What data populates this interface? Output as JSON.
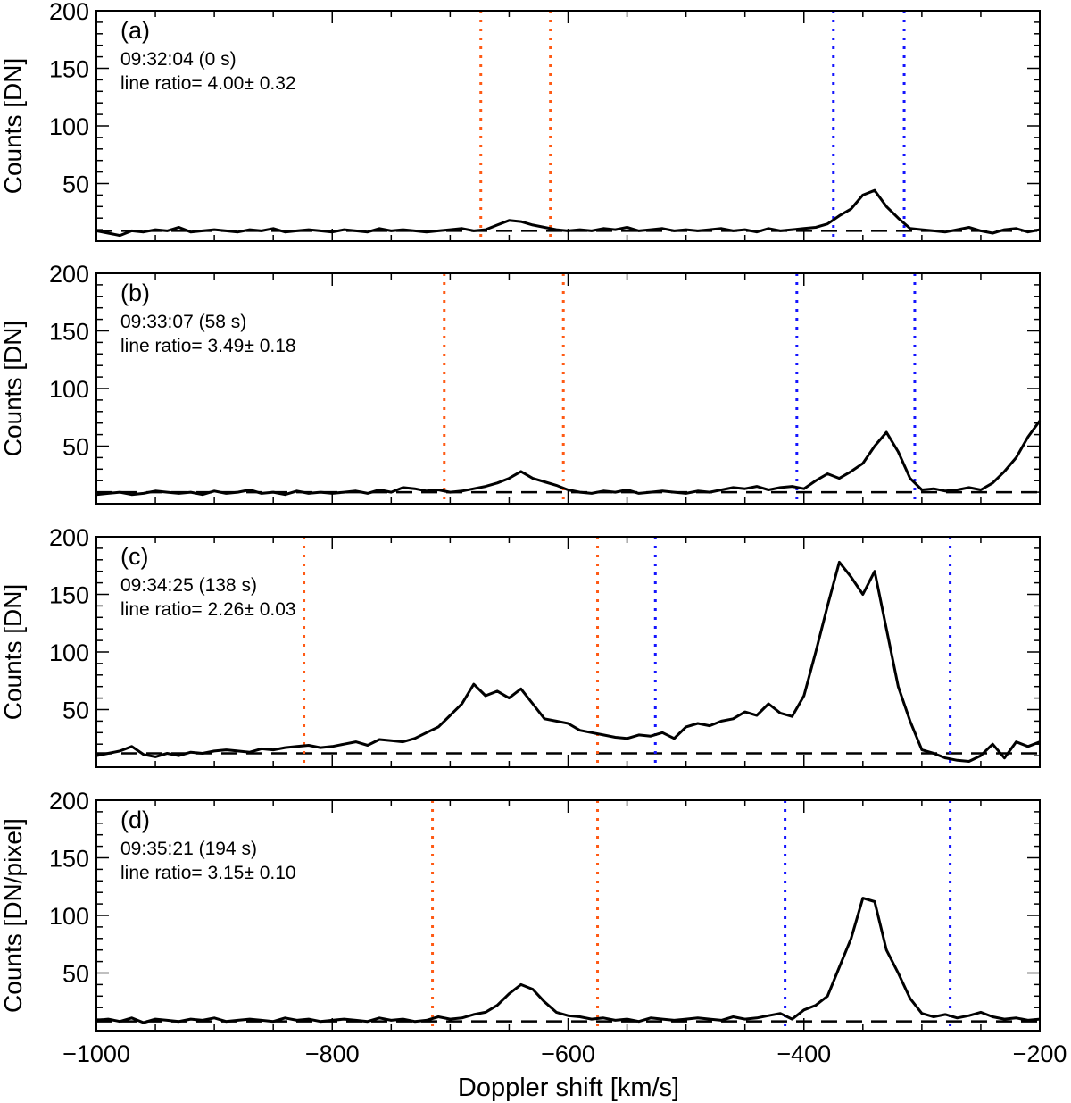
{
  "chart_data": [
    {
      "type": "line",
      "panel_label": "(a)",
      "time": "09:32:04 (0 s)",
      "ratio": "line ratio= 4.00± 0.32",
      "ylabel": "Counts [DN]",
      "xlim": [
        -1000,
        -200
      ],
      "ylim": [
        0,
        200
      ],
      "baseline": 9,
      "orange_lines": [
        -674,
        -615
      ],
      "blue_lines": [
        -375,
        -315
      ],
      "x_start": -1000,
      "x_step": 10,
      "values": [
        9,
        7,
        5,
        9,
        8,
        10,
        9,
        12,
        8,
        9,
        10,
        9,
        8,
        10,
        9,
        11,
        8,
        9,
        10,
        9,
        8,
        10,
        9,
        8,
        11,
        9,
        10,
        9,
        8,
        9,
        10,
        11,
        9,
        10,
        14,
        18,
        17,
        14,
        12,
        10,
        9,
        10,
        9,
        11,
        10,
        12,
        9,
        10,
        11,
        9,
        10,
        9,
        10,
        11,
        9,
        10,
        8,
        11,
        9,
        10,
        11,
        12,
        15,
        22,
        28,
        40,
        44,
        30,
        20,
        11,
        10,
        9,
        8,
        10,
        12,
        9,
        7,
        10,
        11,
        8,
        10
      ]
    },
    {
      "type": "line",
      "panel_label": "(b)",
      "time": "09:33:07 (58 s)",
      "ratio": "line ratio= 3.49± 0.18",
      "ylabel": "Counts [DN]",
      "xlim": [
        -1000,
        -200
      ],
      "ylim": [
        0,
        200
      ],
      "baseline": 10,
      "orange_lines": [
        -705,
        -604
      ],
      "blue_lines": [
        -406,
        -306
      ],
      "x_start": -1000,
      "x_step": 10,
      "values": [
        8,
        9,
        10,
        8,
        9,
        11,
        10,
        9,
        10,
        8,
        11,
        9,
        10,
        12,
        9,
        10,
        8,
        11,
        9,
        10,
        9,
        10,
        11,
        9,
        12,
        10,
        14,
        13,
        11,
        12,
        10,
        11,
        13,
        15,
        18,
        22,
        28,
        22,
        19,
        16,
        12,
        10,
        9,
        11,
        10,
        12,
        9,
        10,
        11,
        10,
        9,
        11,
        10,
        12,
        14,
        13,
        15,
        12,
        14,
        15,
        13,
        20,
        26,
        22,
        28,
        35,
        50,
        62,
        45,
        22,
        12,
        13,
        11,
        12,
        14,
        12,
        18,
        28,
        40,
        58,
        72
      ]
    },
    {
      "type": "line",
      "panel_label": "(c)",
      "time": "09:34:25 (138 s)",
      "ratio": "line ratio= 2.26± 0.03",
      "ylabel": "Counts [DN]",
      "xlim": [
        -1000,
        -200
      ],
      "ylim": [
        0,
        200
      ],
      "baseline": 12,
      "orange_lines": [
        -824,
        -575
      ],
      "blue_lines": [
        -526,
        -276
      ],
      "x_start": -1000,
      "x_step": 10,
      "values": [
        10,
        12,
        14,
        18,
        11,
        9,
        12,
        10,
        13,
        12,
        14,
        15,
        14,
        13,
        16,
        15,
        17,
        18,
        19,
        17,
        18,
        20,
        22,
        19,
        24,
        23,
        22,
        25,
        30,
        35,
        45,
        55,
        72,
        62,
        66,
        60,
        68,
        55,
        42,
        40,
        38,
        32,
        30,
        28,
        26,
        25,
        28,
        27,
        30,
        25,
        35,
        38,
        36,
        40,
        42,
        48,
        45,
        55,
        47,
        44,
        62,
        100,
        140,
        178,
        165,
        150,
        170,
        120,
        70,
        40,
        15,
        12,
        8,
        6,
        5,
        10,
        20,
        8,
        22,
        18,
        22
      ]
    },
    {
      "type": "line",
      "panel_label": "(d)",
      "time": "09:35:21 (194 s)",
      "ratio": "line ratio= 3.15± 0.10",
      "ylabel": "Counts [DN/pixel]",
      "xlim": [
        -1000,
        -200
      ],
      "ylim": [
        0,
        200
      ],
      "baseline": 8,
      "orange_lines": [
        -715,
        -575
      ],
      "blue_lines": [
        -416,
        -276
      ],
      "x_start": -1000,
      "x_step": 10,
      "values": [
        9,
        10,
        8,
        11,
        7,
        10,
        9,
        8,
        10,
        9,
        11,
        8,
        9,
        10,
        9,
        8,
        11,
        9,
        10,
        8,
        9,
        10,
        9,
        8,
        11,
        9,
        10,
        8,
        9,
        12,
        10,
        11,
        14,
        16,
        22,
        32,
        40,
        36,
        25,
        16,
        13,
        12,
        10,
        11,
        9,
        10,
        8,
        11,
        10,
        9,
        10,
        11,
        10,
        9,
        12,
        10,
        11,
        13,
        15,
        10,
        18,
        22,
        30,
        55,
        80,
        115,
        112,
        70,
        50,
        28,
        15,
        12,
        14,
        11,
        13,
        16,
        12,
        10,
        11,
        9,
        10
      ]
    }
  ],
  "xlabel": "Doppler shift [km/s]",
  "x_ticks": [
    "−1000",
    "−800",
    "−600",
    "−400",
    "−200"
  ],
  "y_ticks": [
    "50",
    "100",
    "150",
    "200"
  ],
  "colors": {
    "orange": "#ff5a14",
    "blue": "#1414ff",
    "line": "#000000"
  }
}
